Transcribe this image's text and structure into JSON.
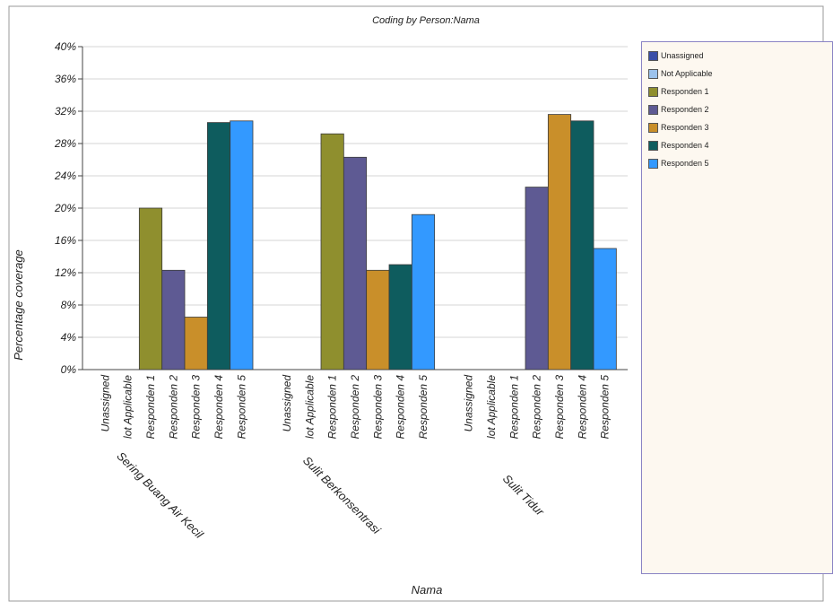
{
  "chart_data": {
    "type": "bar",
    "title": "Coding by Person:Nama",
    "xlabel": "Nama",
    "ylabel": "Percentage coverage",
    "ylim": [
      0,
      40
    ],
    "y_ticks": [
      "0%",
      "4%",
      "8%",
      "12%",
      "16%",
      "20%",
      "24%",
      "28%",
      "32%",
      "36%",
      "40%"
    ],
    "grid": true,
    "legend_position": "right",
    "groups": [
      "Sering Buang Air Kecil",
      "Sulit Berkonsentrasi",
      "Sulit Tidur"
    ],
    "series": [
      {
        "name": "Unassigned",
        "color": "#3a4fa8",
        "values": [
          0,
          0,
          0
        ]
      },
      {
        "name": "Not Applicable",
        "color": "#9cc3ec",
        "values": [
          0,
          0,
          0
        ]
      },
      {
        "name": "Responden 1",
        "color": "#8f8f2e",
        "values": [
          20.0,
          29.2,
          0
        ]
      },
      {
        "name": "Responden 2",
        "color": "#5e5a93",
        "values": [
          12.3,
          26.3,
          22.6
        ]
      },
      {
        "name": "Responden 3",
        "color": "#c98f2a",
        "values": [
          6.5,
          12.3,
          31.6
        ]
      },
      {
        "name": "Responden 4",
        "color": "#0e5c5e",
        "values": [
          30.6,
          13.0,
          30.8
        ]
      },
      {
        "name": "Responden 5",
        "color": "#3399ff",
        "values": [
          30.8,
          19.2,
          15.0
        ]
      }
    ],
    "x_tick_labels": [
      "Unassigned",
      "lot Applicable",
      "Responden 1",
      "Responden 2",
      "Responden 3",
      "Responden 4",
      "Responden 5"
    ]
  }
}
